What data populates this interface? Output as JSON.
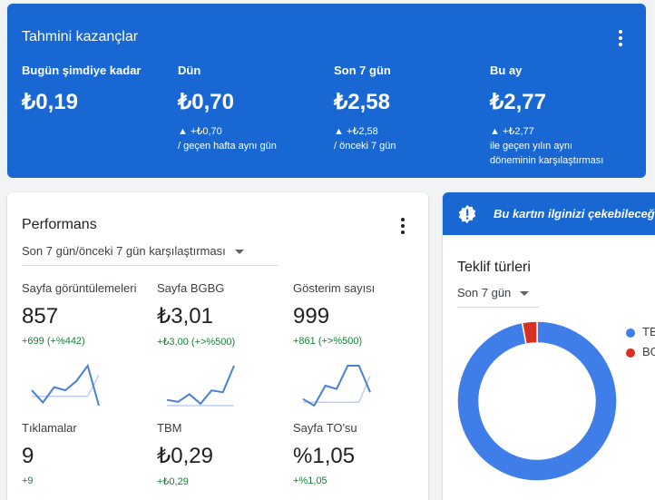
{
  "earnings": {
    "title": "Tahmini kazançlar",
    "columns": [
      {
        "label": "Bugün şimdiye kadar",
        "value": "₺0,19",
        "change": "",
        "caption_1": "",
        "caption_2": ""
      },
      {
        "label": "Dün",
        "value": "₺0,70",
        "change": "▲ +₺0,70",
        "caption_1": "/ geçen hafta aynı gün",
        "caption_2": ""
      },
      {
        "label": "Son 7 gün",
        "value": "₺2,58",
        "change": "▲ +₺2,58",
        "caption_1": "/ önceki 7 gün",
        "caption_2": ""
      },
      {
        "label": "Bu ay",
        "value": "₺2,77",
        "change": "▲ +₺2,77",
        "caption_1": "ile geçen yılın aynı",
        "caption_2": "döneminin karşılaştırması"
      }
    ]
  },
  "performance": {
    "title": "Performans",
    "period_select": "Son 7 gün/önceki 7 gün karşılaştırması",
    "metrics": [
      {
        "label": "Sayfa görüntülemeleri",
        "value": "857",
        "change": "+699 (+%442)",
        "spark": [
          8,
          4,
          9,
          8,
          11,
          16,
          3
        ],
        "baseline": [
          6,
          6,
          6,
          6,
          6,
          6,
          13
        ]
      },
      {
        "label": "Sayfa BGBG",
        "value": "₺3,01",
        "change": "+₺3,00 (+>%500)",
        "spark": [
          4,
          3,
          7,
          2,
          9,
          8,
          22
        ],
        "baseline": [
          1,
          1,
          1,
          1,
          1,
          1,
          1
        ]
      },
      {
        "label": "Gösterim sayısı",
        "value": "999",
        "change": "+861 (+>%500)",
        "spark": [
          6,
          4,
          10,
          9,
          16,
          16,
          8
        ],
        "baseline": [
          5,
          5,
          5,
          5,
          5,
          5,
          13
        ]
      },
      {
        "label": "Tıklamalar",
        "value": "9",
        "change": "+9"
      },
      {
        "label": "TBM",
        "value": "₺0,29",
        "change": "+₺0,29"
      },
      {
        "label": "Sayfa TO'su",
        "value": "%1,05",
        "change": "+%1,05"
      }
    ],
    "colors": {
      "spark": "#4a7fd8",
      "baseline": "#bcd0f1"
    }
  },
  "tip": {
    "text": "Bu kartın ilginizi çekebileceğini düşündük",
    "icon": "alert-badge-icon"
  },
  "bid_types": {
    "title": "Teklif türleri",
    "period_select": "Son 7 gün",
    "segments": [
      {
        "label": "TBM",
        "value": 97,
        "color": "#3f7ee8"
      },
      {
        "label": "BGBG",
        "value": 3,
        "color": "#d93025"
      }
    ]
  }
}
